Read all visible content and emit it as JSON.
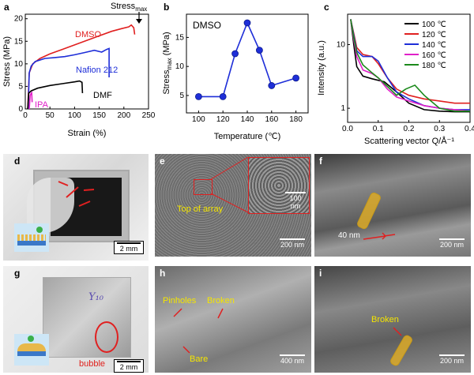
{
  "panels": {
    "a": {
      "label": "a",
      "ylabel": "Stress (MPa)",
      "xlabel": "Strain (%)",
      "yticks": [
        "0",
        "5",
        "10",
        "15",
        "20"
      ],
      "xticks": [
        "0",
        "50",
        "100",
        "150",
        "200",
        "250"
      ],
      "annot": {
        "stress_max": "Stress",
        "stress_max_sub": "max",
        "dmso": "DMSO",
        "nafion": "Nafion 212",
        "dmf": "DMF",
        "ipa": "IPA"
      }
    },
    "b": {
      "label": "b",
      "ylabel": "Stress",
      "ylabel_sub": "max",
      "ylabel_unit": " (MPa)",
      "xlabel": "Temperature (℃)",
      "yticks": [
        "5",
        "10",
        "15"
      ],
      "xticks": [
        "100",
        "120",
        "140",
        "160",
        "180"
      ],
      "annot": "DMSO"
    },
    "c": {
      "label": "c",
      "ylabel": "Intensity (a.u.)",
      "xlabel": "Scattering vector Q/Å⁻¹",
      "yticks": [
        "1",
        "10"
      ],
      "xticks": [
        "0.0",
        "0.1",
        "0.2",
        "0.3",
        "0.4"
      ],
      "legend": [
        "100 ℃",
        "120 ℃",
        "140 ℃",
        "160 ℃",
        "180 ℃"
      ]
    },
    "d": {
      "label": "d",
      "scale": "2 mm"
    },
    "e": {
      "label": "e",
      "scale": "200 nm",
      "inset_scale": "100 nm",
      "annot": "Top of array"
    },
    "f": {
      "label": "f",
      "scale": "200 nm",
      "annot": "40 nm"
    },
    "g": {
      "label": "g",
      "scale": "2 mm",
      "annot": "bubble",
      "handwriting": "Y₁₀"
    },
    "h": {
      "label": "h",
      "scale": "400 nm",
      "annot_pinholes": "Pinholes",
      "annot_broken": "Broken",
      "annot_bare": "Bare"
    },
    "i": {
      "label": "i",
      "scale": "200 nm",
      "annot": "Broken"
    }
  },
  "chart_data": [
    {
      "type": "line",
      "panel": "a",
      "xlabel": "Strain (%)",
      "ylabel": "Stress (MPa)",
      "xlim": [
        0,
        250
      ],
      "ylim": [
        0,
        21
      ],
      "series": [
        {
          "name": "DMSO",
          "color": "#e02020",
          "x": [
            5,
            8,
            15,
            30,
            50,
            75,
            100,
            125,
            150,
            175,
            195,
            210,
            215,
            220,
            222
          ],
          "y": [
            0,
            8,
            10,
            11.2,
            12.2,
            13.2,
            14.2,
            15.2,
            16.2,
            17.2,
            17.8,
            18.2,
            18.6,
            18.0,
            16.5
          ]
        },
        {
          "name": "Nafion 212",
          "color": "#1e2ed8",
          "x": [
            6,
            8,
            12,
            20,
            40,
            60,
            80,
            100,
            120,
            140,
            155,
            165,
            170,
            170
          ],
          "y": [
            0,
            8,
            9.5,
            10.5,
            11.2,
            11.4,
            11.6,
            12.0,
            12.5,
            13.0,
            12.6,
            13.2,
            13.4,
            7.0
          ]
        },
        {
          "name": "DMF",
          "color": "#000000",
          "x": [
            5,
            7,
            12,
            25,
            50,
            75,
            100,
            110,
            115,
            116
          ],
          "y": [
            0,
            3.5,
            4.0,
            4.6,
            5.2,
            5.6,
            6.0,
            6.2,
            5.9,
            3.5
          ]
        },
        {
          "name": "IPA",
          "color": "#e020c8",
          "x": [
            8,
            10,
            12,
            13,
            14
          ],
          "y": [
            0,
            3.0,
            3.5,
            3.6,
            1.5
          ]
        }
      ]
    },
    {
      "type": "line",
      "panel": "b",
      "xlabel": "Temperature (℃)",
      "xlim": [
        90,
        190
      ],
      "ylim": [
        2,
        19
      ],
      "series": [
        {
          "name": "DMSO",
          "color": "#1e2ed8",
          "x": [
            100,
            120,
            130,
            140,
            150,
            160,
            180
          ],
          "y": [
            4.8,
            4.8,
            12.2,
            17.5,
            12.8,
            6.7,
            8.0
          ]
        }
      ]
    },
    {
      "type": "line",
      "panel": "c",
      "xlabel": "Scattering vector Q/Å⁻¹",
      "ylabel": "Intensity (a.u.)",
      "xlim": [
        0,
        0.4
      ],
      "ylim": [
        0.6,
        30
      ],
      "yscale": "log",
      "series": [
        {
          "name": "100 ℃",
          "color": "#000000",
          "x": [
            0.01,
            0.02,
            0.03,
            0.05,
            0.08,
            0.12,
            0.16,
            0.2,
            0.25,
            0.3,
            0.35,
            0.4
          ],
          "y": [
            25,
            10,
            4.5,
            3.2,
            2.9,
            2.6,
            1.8,
            1.2,
            0.95,
            0.9,
            0.88,
            0.88
          ]
        },
        {
          "name": "120 ℃",
          "color": "#e02020",
          "x": [
            0.01,
            0.02,
            0.03,
            0.05,
            0.08,
            0.1,
            0.13,
            0.16,
            0.2,
            0.25,
            0.3,
            0.35,
            0.4
          ],
          "y": [
            25,
            15,
            9.0,
            7.0,
            6.5,
            5.0,
            3.0,
            2.0,
            1.6,
            1.4,
            1.3,
            1.2,
            1.2
          ]
        },
        {
          "name": "140 ℃",
          "color": "#1e2ed8",
          "x": [
            0.01,
            0.02,
            0.03,
            0.05,
            0.08,
            0.1,
            0.13,
            0.16,
            0.2,
            0.25,
            0.3,
            0.35,
            0.4
          ],
          "y": [
            25,
            14,
            8.0,
            6.5,
            6.5,
            5.5,
            3.0,
            1.8,
            1.4,
            1.1,
            1.0,
            0.95,
            0.95
          ]
        },
        {
          "name": "160 ℃",
          "color": "#e020c8",
          "x": [
            0.01,
            0.02,
            0.03,
            0.05,
            0.08,
            0.1,
            0.13,
            0.16,
            0.2,
            0.25,
            0.3,
            0.35,
            0.4
          ],
          "y": [
            25,
            12,
            6.5,
            4.0,
            3.5,
            3.0,
            2.0,
            1.5,
            1.3,
            1.1,
            1.0,
            0.95,
            0.9
          ]
        },
        {
          "name": "180 ℃",
          "color": "#1c8a1c",
          "x": [
            0.01,
            0.02,
            0.03,
            0.05,
            0.08,
            0.1,
            0.13,
            0.16,
            0.19,
            0.22,
            0.25,
            0.3,
            0.35,
            0.4
          ],
          "y": [
            25,
            13,
            7.5,
            4.8,
            3.6,
            3.0,
            2.2,
            1.6,
            2.0,
            2.3,
            1.6,
            1.0,
            0.9,
            0.9
          ]
        }
      ]
    }
  ]
}
